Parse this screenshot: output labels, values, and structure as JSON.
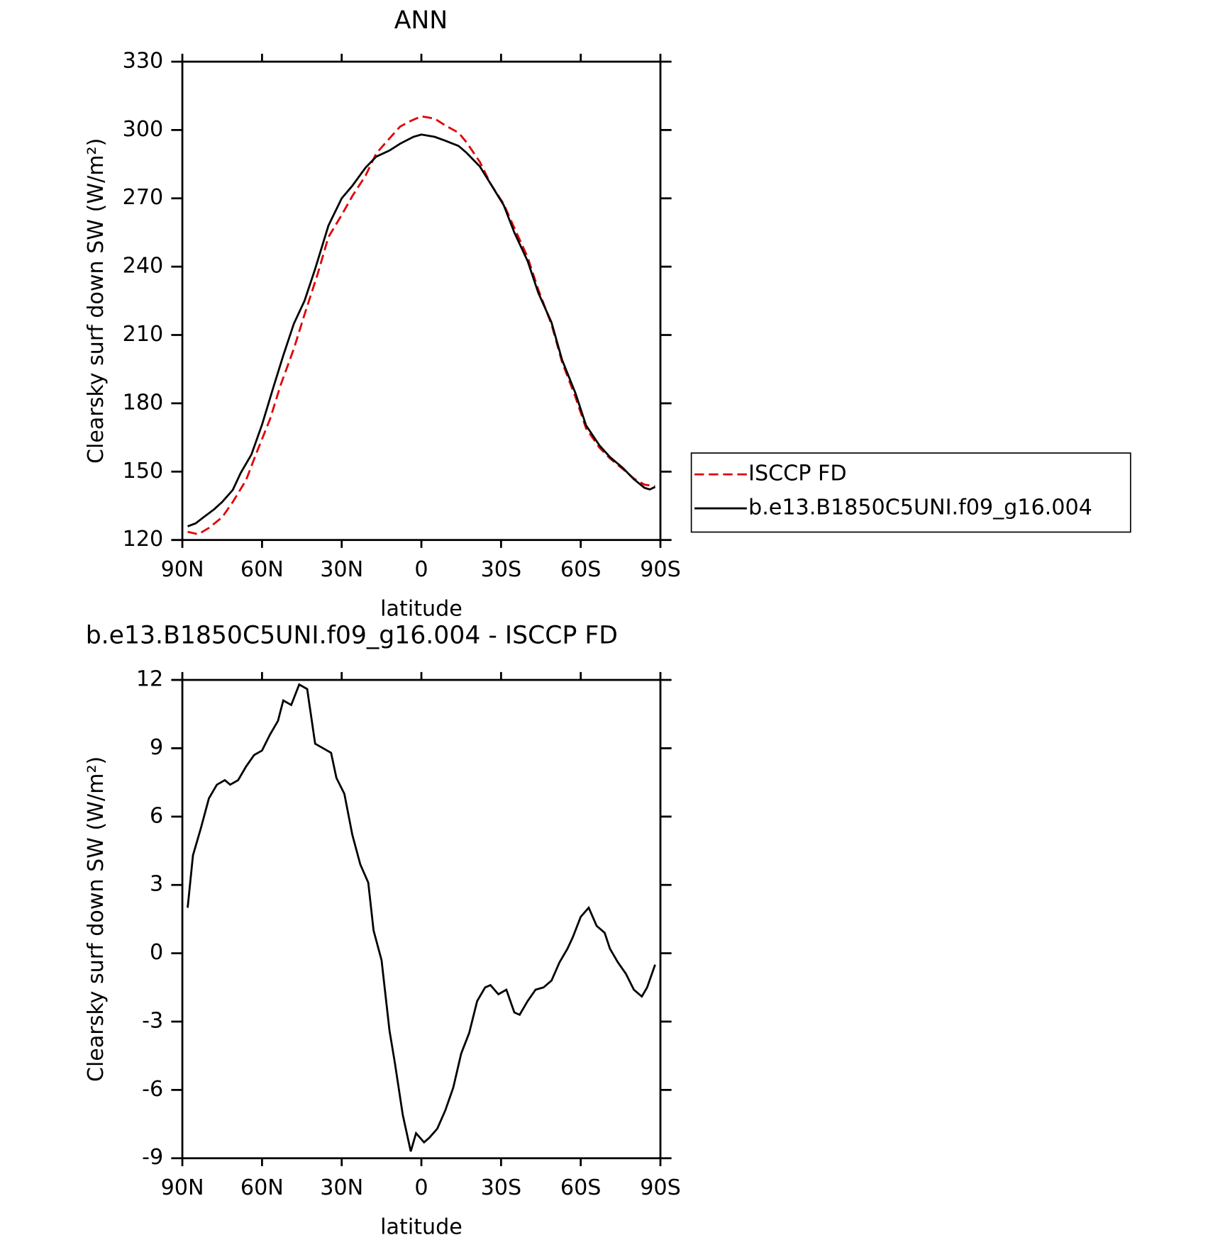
{
  "chart_data": [
    {
      "type": "line",
      "title": "ANN",
      "xlabel": "latitude",
      "ylabel": "Clearsky surf down SW (W/m²)",
      "xlim": [
        90,
        -90
      ],
      "ylim": [
        120,
        330
      ],
      "xticks": [
        {
          "value": 90,
          "label": "90N"
        },
        {
          "value": 60,
          "label": "60N"
        },
        {
          "value": 30,
          "label": "30N"
        },
        0,
        {
          "value": -30,
          "label": "30S"
        },
        {
          "value": -60,
          "label": "60S"
        },
        {
          "value": -90,
          "label": "90S"
        }
      ],
      "yticks": [
        120,
        150,
        180,
        210,
        240,
        270,
        300,
        330
      ],
      "legend": "right",
      "series": [
        {
          "name": "ISCCP FD",
          "color": "#e00000",
          "dashed": true,
          "x": [
            88,
            84,
            80,
            75,
            71,
            66,
            62,
            57,
            53,
            48,
            44,
            39,
            35,
            30,
            26,
            21,
            17,
            12,
            8,
            4,
            0,
            -5,
            -9,
            -14,
            -17,
            -22,
            -26,
            -31,
            -35,
            -40,
            -44,
            -49,
            -53,
            -58,
            -62,
            -67,
            -71,
            -76,
            -80,
            -84,
            -88
          ],
          "values": [
            123.6,
            122.5,
            125.3,
            130,
            136.7,
            146.3,
            158.5,
            173,
            188,
            204,
            219,
            237,
            253,
            262.7,
            271,
            280,
            289.7,
            296.3,
            301.5,
            304,
            306,
            305,
            302,
            298.8,
            294.6,
            286,
            276.5,
            267.5,
            257,
            244.2,
            230,
            214.6,
            198,
            182.8,
            169,
            160.6,
            155.8,
            151,
            147,
            144.3,
            143.6
          ]
        },
        {
          "name": "b.e13.B1850C5UNI.f09_g16.004",
          "color": "#000000",
          "dashed": false,
          "x": [
            88,
            85,
            82,
            78,
            75,
            71,
            68,
            64,
            60,
            56,
            52,
            48,
            44,
            40,
            35,
            30,
            26,
            21,
            17,
            12,
            8,
            3,
            0,
            -5,
            -9,
            -14,
            -17,
            -22,
            -26,
            -31,
            -35,
            -40,
            -44,
            -49,
            -53,
            -58,
            -62,
            -67,
            -71,
            -76,
            -80,
            -84,
            -86,
            -88
          ],
          "values": [
            126,
            127.3,
            130,
            133.5,
            136.7,
            142,
            149.5,
            157.5,
            170.6,
            186,
            201,
            215,
            225,
            239,
            258,
            270,
            275.5,
            283.5,
            288.3,
            291,
            294,
            297,
            298,
            297,
            295.3,
            293,
            290,
            284,
            276.5,
            267,
            255,
            242.5,
            228.6,
            215.5,
            199,
            184.5,
            170.3,
            161.6,
            156.4,
            151.5,
            146.7,
            142.9,
            142.2,
            143.3
          ]
        }
      ]
    },
    {
      "type": "line",
      "title": "b.e13.B1850C5UNI.f09_g16.004 - ISCCP FD",
      "xlabel": "latitude",
      "ylabel": "Clearsky surf down SW (W/m²)",
      "xlim": [
        90,
        -90
      ],
      "ylim": [
        -9,
        12
      ],
      "xticks": [
        {
          "value": 90,
          "label": "90N"
        },
        {
          "value": 60,
          "label": "60N"
        },
        {
          "value": 30,
          "label": "30N"
        },
        0,
        {
          "value": -30,
          "label": "30S"
        },
        {
          "value": -60,
          "label": "60S"
        },
        {
          "value": -90,
          "label": "90S"
        }
      ],
      "yticks": [
        -9,
        -6,
        -3,
        0,
        3,
        6,
        9,
        12
      ],
      "series": [
        {
          "color": "#000000",
          "dashed": false,
          "x": [
            88,
            86,
            83,
            80,
            77,
            74,
            72,
            69,
            66,
            63,
            60,
            57,
            54,
            52,
            49,
            46,
            43,
            40,
            37,
            34,
            32,
            29,
            26,
            23,
            20,
            18,
            15,
            12,
            10,
            7,
            4,
            2,
            -1,
            -3,
            -6,
            -9,
            -12,
            -15,
            -18,
            -21,
            -24,
            -26,
            -29,
            -32,
            -35,
            -37,
            -40,
            -43,
            -46,
            -49,
            -52,
            -55,
            -57,
            -60,
            -63,
            -66,
            -69,
            -71,
            -74,
            -77,
            -80,
            -83,
            -85,
            -88
          ],
          "values": [
            2.0,
            4.3,
            5.5,
            6.8,
            7.4,
            7.6,
            7.4,
            7.6,
            8.2,
            8.7,
            8.9,
            9.6,
            10.2,
            11.1,
            10.9,
            11.8,
            11.6,
            9.2,
            9.0,
            8.8,
            7.7,
            7.0,
            5.2,
            3.9,
            3.1,
            1.0,
            -0.3,
            -3.4,
            -4.8,
            -7.1,
            -8.7,
            -7.9,
            -8.3,
            -8.1,
            -7.7,
            -6.9,
            -5.9,
            -4.4,
            -3.5,
            -2.1,
            -1.5,
            -1.4,
            -1.8,
            -1.6,
            -2.6,
            -2.7,
            -2.1,
            -1.6,
            -1.5,
            -1.2,
            -0.4,
            0.2,
            0.7,
            1.6,
            2.0,
            1.2,
            0.9,
            0.2,
            -0.4,
            -0.9,
            -1.6,
            -1.9,
            -1.5,
            -0.5
          ]
        }
      ]
    }
  ]
}
